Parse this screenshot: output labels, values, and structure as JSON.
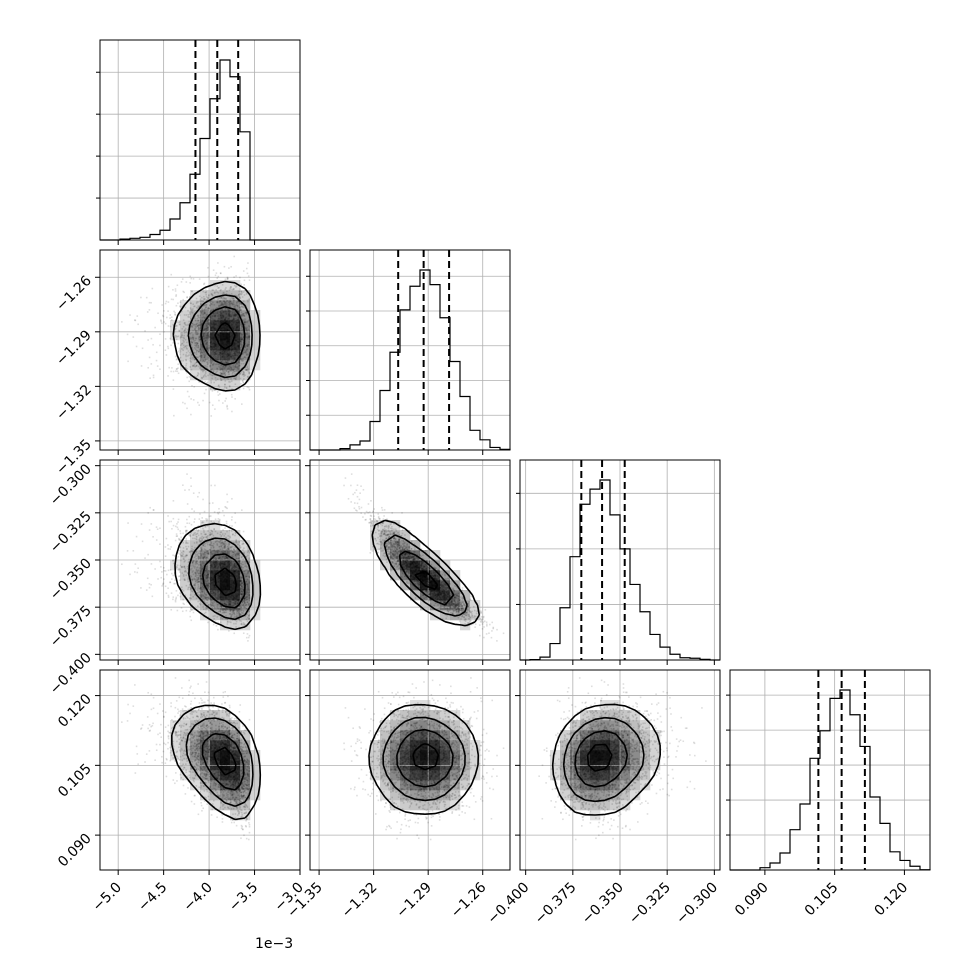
{
  "chart_data": {
    "type": "corner",
    "parameters": [
      {
        "samples": {
          "mean": -0.0039,
          "sd": 0.00022,
          "skew": -1.0
        },
        "range": [
          -0.0052,
          -0.003
        ],
        "ticks": [
          -0.005,
          -0.0045,
          -0.004,
          -0.0035,
          -0.003
        ],
        "tick_labels": [
          "−5.0",
          "−4.5",
          "−4.0",
          "−3.5",
          "−3.0"
        ],
        "offset_label": "1e−3",
        "quantiles": [
          -0.00415,
          -0.00391,
          -0.00368
        ]
      },
      {
        "samples": {
          "mean": -1.2925,
          "sd": 0.0135,
          "skew": 0
        },
        "range": [
          -1.355,
          -1.245
        ],
        "ticks": [
          -1.35,
          -1.32,
          -1.29,
          -1.26
        ],
        "tick_labels": [
          "−1.35",
          "−1.32",
          "−1.29",
          "−1.26"
        ],
        "quantiles": [
          -1.3065,
          -1.2925,
          -1.2785
        ]
      },
      {
        "samples": {
          "mean": -0.358,
          "sd": 0.0125,
          "skew": 0.4
        },
        "range": [
          -0.403,
          -0.297
        ],
        "ticks": [
          -0.4,
          -0.375,
          -0.35,
          -0.325,
          -0.3
        ],
        "tick_labels": [
          "−0.400",
          "−0.375",
          "−0.350",
          "−0.325",
          "−0.300"
        ],
        "quantiles": [
          -0.3705,
          -0.3595,
          -0.3475
        ]
      },
      {
        "samples": {
          "mean": 0.1065,
          "sd": 0.0055,
          "skew": 0
        },
        "range": [
          0.0825,
          0.1255
        ],
        "ticks": [
          0.09,
          0.105,
          0.12
        ],
        "tick_labels": [
          "0.090",
          "0.105",
          "0.120"
        ],
        "quantiles": [
          0.1015,
          0.1065,
          0.1115
        ]
      }
    ],
    "correlations": {
      "1-0": 0.0,
      "2-0": -0.35,
      "2-1": -0.96,
      "3-0": -0.45,
      "3-1": 0.0,
      "3-2": 0.0
    },
    "contour_levels": [
      "0.5sigma",
      "1sigma",
      "1.5sigma",
      "2sigma"
    ],
    "histogram_bins": 20,
    "grid": true,
    "colors": {
      "line": "#000000",
      "grid": "#b0b0b0",
      "density": "#000000"
    }
  }
}
